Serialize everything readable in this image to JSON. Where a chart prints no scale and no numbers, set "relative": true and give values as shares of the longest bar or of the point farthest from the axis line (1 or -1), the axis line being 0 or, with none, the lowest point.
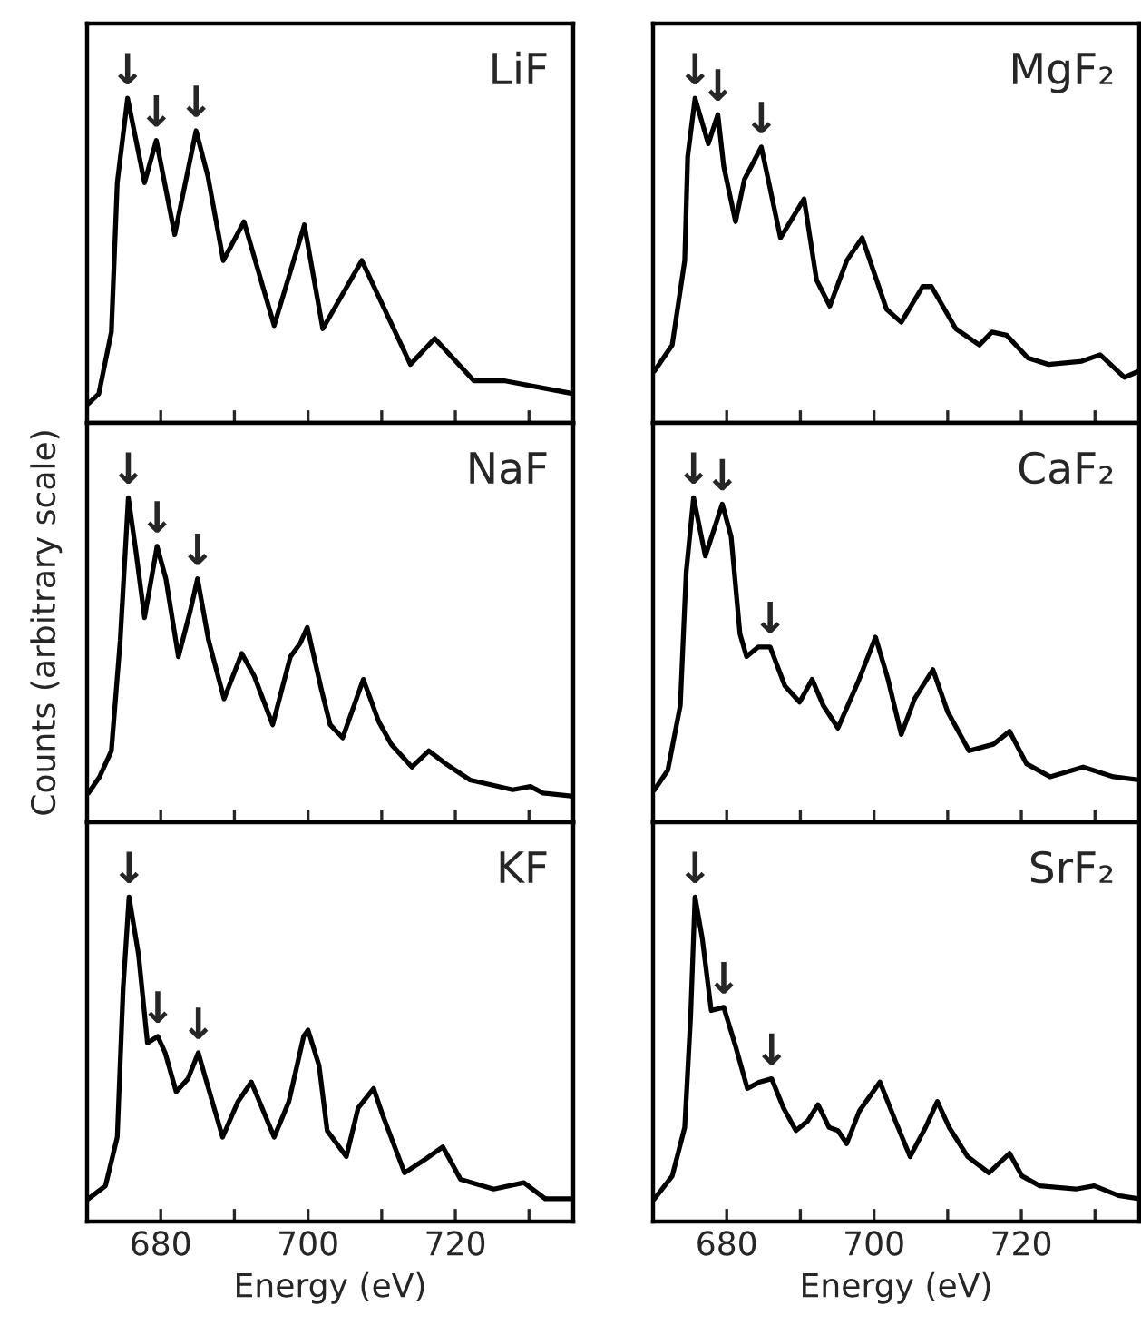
{
  "chart_data": [
    {
      "type": "line",
      "title": "LiF",
      "relative": true,
      "xlim": [
        670,
        736
      ],
      "xticks": [
        {
          "value": 680,
          "label": null
        },
        {
          "value": 690,
          "label": null
        },
        {
          "value": 700,
          "label": null
        },
        {
          "value": 710,
          "label": null
        },
        {
          "value": 720,
          "label": null
        },
        {
          "value": 730,
          "label": null
        }
      ],
      "tick_labels": false,
      "x": [
        670.2,
        671.6,
        673.3,
        674.1,
        675.5,
        677.8,
        679.4,
        681.9,
        684.8,
        686.4,
        688.5,
        691.3,
        695.4,
        699.5,
        702.0,
        707.3,
        713.9,
        717.2,
        722.5,
        726.6,
        736.0
      ],
      "series": [
        {
          "color": "#000000",
          "values": [
            0.06,
            0.09,
            0.28,
            0.74,
            1.0,
            0.74,
            0.87,
            0.58,
            0.9,
            0.76,
            0.5,
            0.62,
            0.3,
            0.61,
            0.29,
            0.5,
            0.18,
            0.26,
            0.13,
            0.13,
            0.09
          ]
        }
      ],
      "annotations": [
        {
          "text": "↓",
          "x": 675.5,
          "y": 1.0
        },
        {
          "text": "↓",
          "x": 679.4,
          "y": 0.87
        },
        {
          "text": "↓",
          "x": 684.8,
          "y": 0.9
        }
      ]
    },
    {
      "type": "line",
      "title": "MgF₂",
      "relative": true,
      "xlim": [
        670,
        736
      ],
      "xticks": [
        {
          "value": 680,
          "label": null
        },
        {
          "value": 690,
          "label": null
        },
        {
          "value": 700,
          "label": null
        },
        {
          "value": 710,
          "label": null
        },
        {
          "value": 720,
          "label": null
        },
        {
          "value": 730,
          "label": null
        }
      ],
      "tick_labels": false,
      "x": [
        670.2,
        672.6,
        674.3,
        674.7,
        675.7,
        677.5,
        678.8,
        679.6,
        681.2,
        682.4,
        684.7,
        687.3,
        690.5,
        692.2,
        694.0,
        696.3,
        698.4,
        701.7,
        703.7,
        706.6,
        707.8,
        711.1,
        714.3,
        716.0,
        718.0,
        720.9,
        723.7,
        728.2,
        730.7,
        734.0,
        736.0
      ],
      "series": [
        {
          "color": "#000000",
          "values": [
            0.16,
            0.24,
            0.5,
            0.82,
            1.0,
            0.86,
            0.95,
            0.79,
            0.62,
            0.75,
            0.85,
            0.57,
            0.69,
            0.44,
            0.36,
            0.5,
            0.57,
            0.35,
            0.31,
            0.42,
            0.42,
            0.29,
            0.24,
            0.28,
            0.27,
            0.2,
            0.18,
            0.19,
            0.21,
            0.14,
            0.16
          ]
        }
      ],
      "annotations": [
        {
          "text": "↓",
          "x": 675.7,
          "y": 1.0
        },
        {
          "text": "↓",
          "x": 678.8,
          "y": 0.95
        },
        {
          "text": "↓",
          "x": 684.7,
          "y": 0.85
        }
      ]
    },
    {
      "type": "line",
      "title": "NaF",
      "ylabel": "Counts (arbitrary scale)",
      "relative": true,
      "xlim": [
        670,
        736
      ],
      "xticks": [
        {
          "value": 680,
          "label": null
        },
        {
          "value": 690,
          "label": null
        },
        {
          "value": 700,
          "label": null
        },
        {
          "value": 710,
          "label": null
        },
        {
          "value": 720,
          "label": null
        },
        {
          "value": 730,
          "label": null
        }
      ],
      "tick_labels": false,
      "x": [
        670.2,
        671.7,
        673.3,
        674.5,
        675.6,
        676.6,
        677.8,
        679.5,
        680.7,
        682.4,
        684.0,
        685.0,
        686.5,
        688.6,
        691.0,
        692.7,
        695.2,
        697.6,
        698.9,
        699.9,
        701.8,
        703.0,
        704.7,
        707.5,
        709.6,
        711.3,
        714.1,
        716.4,
        718.7,
        722.0,
        727.8,
        730.2,
        731.9,
        736.0
      ],
      "series": [
        {
          "color": "#000000",
          "values": [
            0.09,
            0.14,
            0.22,
            0.56,
            1.0,
            0.84,
            0.63,
            0.85,
            0.75,
            0.51,
            0.65,
            0.75,
            0.56,
            0.38,
            0.52,
            0.45,
            0.3,
            0.51,
            0.55,
            0.6,
            0.41,
            0.3,
            0.26,
            0.44,
            0.31,
            0.24,
            0.17,
            0.22,
            0.18,
            0.13,
            0.1,
            0.11,
            0.09,
            0.08
          ]
        }
      ],
      "annotations": [
        {
          "text": "↓",
          "x": 675.6,
          "y": 1.0
        },
        {
          "text": "↓",
          "x": 679.5,
          "y": 0.85
        },
        {
          "text": "↓",
          "x": 685.0,
          "y": 0.75
        }
      ]
    },
    {
      "type": "line",
      "title": "CaF₂",
      "relative": true,
      "xlim": [
        670,
        736
      ],
      "xticks": [
        {
          "value": 680,
          "label": null
        },
        {
          "value": 690,
          "label": null
        },
        {
          "value": 700,
          "label": null
        },
        {
          "value": 710,
          "label": null
        },
        {
          "value": 720,
          "label": null
        },
        {
          "value": 730,
          "label": null
        }
      ],
      "tick_labels": false,
      "x": [
        670.2,
        672.0,
        673.7,
        674.5,
        675.5,
        677.1,
        679.4,
        680.6,
        681.8,
        682.7,
        684.3,
        685.9,
        687.9,
        689.9,
        691.6,
        693.1,
        695.1,
        697.8,
        700.2,
        701.9,
        703.7,
        705.5,
        708.0,
        710.0,
        712.9,
        716.2,
        718.4,
        720.7,
        723.9,
        728.4,
        732.5,
        736.0
      ],
      "series": [
        {
          "color": "#000000",
          "values": [
            0.1,
            0.16,
            0.36,
            0.77,
            1.0,
            0.82,
            0.98,
            0.88,
            0.58,
            0.51,
            0.54,
            0.54,
            0.42,
            0.37,
            0.44,
            0.36,
            0.29,
            0.43,
            0.57,
            0.44,
            0.27,
            0.38,
            0.47,
            0.34,
            0.22,
            0.24,
            0.28,
            0.18,
            0.14,
            0.17,
            0.14,
            0.13
          ]
        }
      ],
      "annotations": [
        {
          "text": "↓",
          "x": 675.5,
          "y": 1.0
        },
        {
          "text": "↓",
          "x": 679.4,
          "y": 0.98
        },
        {
          "text": "↓",
          "x": 685.9,
          "y": 0.54
        }
      ]
    },
    {
      "type": "line",
      "title": "KF",
      "xlabel": "Energy (eV)",
      "relative": true,
      "xlim": [
        670,
        736
      ],
      "xticks": [
        680,
        {
          "value": 690,
          "label": null
        },
        700,
        {
          "value": 710,
          "label": null
        },
        720,
        {
          "value": 730,
          "label": null
        }
      ],
      "tick_labels": "x",
      "x": [
        670.2,
        672.5,
        674.1,
        674.9,
        675.7,
        677.0,
        678.2,
        679.6,
        680.6,
        682.1,
        683.7,
        685.1,
        686.1,
        688.4,
        690.5,
        692.3,
        695.4,
        697.4,
        699.4,
        700.0,
        701.5,
        702.6,
        705.2,
        706.8,
        708.9,
        710.1,
        713.1,
        715.8,
        718.3,
        720.7,
        725.2,
        729.3,
        732.2,
        736.0
      ],
      "series": [
        {
          "color": "#000000",
          "values": [
            0.07,
            0.11,
            0.26,
            0.72,
            1.0,
            0.82,
            0.55,
            0.57,
            0.52,
            0.4,
            0.44,
            0.52,
            0.44,
            0.26,
            0.37,
            0.43,
            0.26,
            0.37,
            0.57,
            0.59,
            0.48,
            0.28,
            0.2,
            0.35,
            0.41,
            0.33,
            0.15,
            0.19,
            0.23,
            0.13,
            0.1,
            0.12,
            0.07,
            0.07
          ]
        }
      ],
      "annotations": [
        {
          "text": "↓",
          "x": 675.7,
          "y": 1.0
        },
        {
          "text": "↓",
          "x": 679.6,
          "y": 0.57
        },
        {
          "text": "↓",
          "x": 685.1,
          "y": 0.52
        }
      ]
    },
    {
      "type": "line",
      "title": "SrF₂",
      "xlabel": "Energy (eV)",
      "relative": true,
      "xlim": [
        670,
        736
      ],
      "xticks": [
        680,
        {
          "value": 690,
          "label": null
        },
        700,
        {
          "value": 710,
          "label": null
        },
        720,
        {
          "value": 730,
          "label": null
        }
      ],
      "tick_labels": "x",
      "x": [
        670.2,
        672.6,
        674.3,
        675.1,
        675.7,
        676.7,
        677.9,
        679.6,
        681.2,
        682.8,
        684.5,
        686.1,
        687.7,
        689.4,
        691.0,
        692.4,
        693.9,
        695.1,
        696.3,
        698.0,
        700.8,
        702.9,
        704.9,
        707.0,
        708.6,
        710.2,
        712.7,
        715.6,
        718.4,
        720.1,
        722.5,
        727.4,
        729.9,
        733.2,
        736.0
      ],
      "series": [
        {
          "color": "#000000",
          "values": [
            0.07,
            0.14,
            0.29,
            0.63,
            1.0,
            0.87,
            0.65,
            0.66,
            0.54,
            0.41,
            0.43,
            0.44,
            0.35,
            0.28,
            0.31,
            0.36,
            0.29,
            0.28,
            0.24,
            0.34,
            0.43,
            0.31,
            0.2,
            0.29,
            0.37,
            0.29,
            0.2,
            0.15,
            0.21,
            0.14,
            0.11,
            0.1,
            0.11,
            0.08,
            0.07
          ]
        }
      ],
      "annotations": [
        {
          "text": "↓",
          "x": 675.7,
          "y": 1.0
        },
        {
          "text": "↓",
          "x": 679.6,
          "y": 0.66
        },
        {
          "text": "↓",
          "x": 686.1,
          "y": 0.44
        }
      ]
    }
  ]
}
